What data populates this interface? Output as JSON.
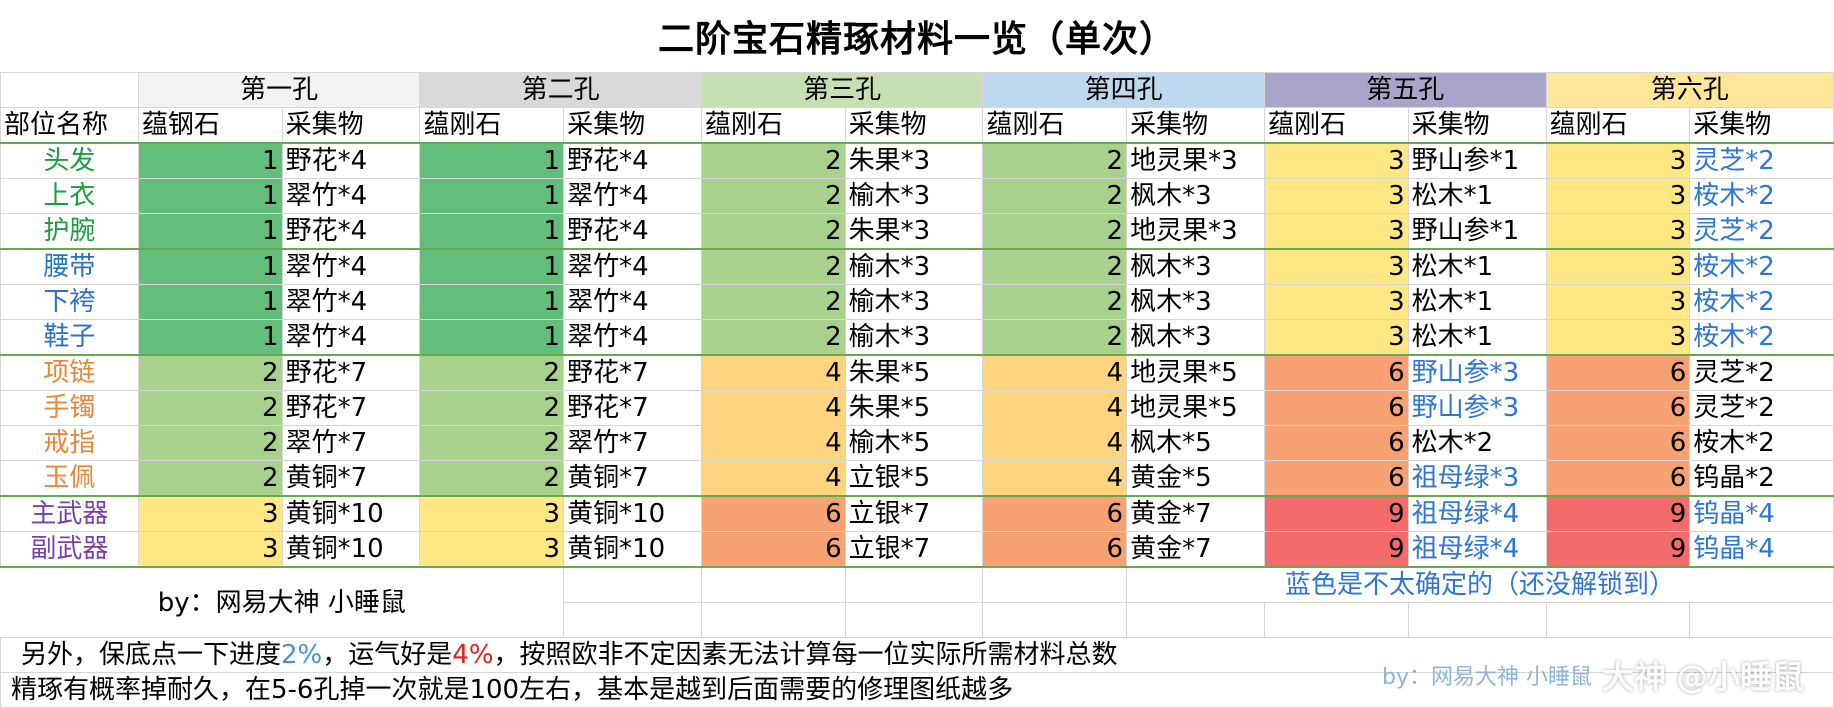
{
  "title": "二阶宝石精琢材料一览（单次）",
  "holes": [
    "第一孔",
    "第二孔",
    "第三孔",
    "第四孔",
    "第五孔",
    "第六孔"
  ],
  "hole_colors": [
    "#f2f2f2",
    "#d9d9d9",
    "#c6e0b4",
    "#bdd7ee",
    "#a9a4c9",
    "#ffe699"
  ],
  "header": {
    "part_name": "部位名称",
    "cols": [
      "蕴钢石",
      "采集物",
      "蕴刚石",
      "采集物",
      "蕴刚石",
      "采集物",
      "蕴刚石",
      "采集物",
      "蕴刚石",
      "采集物",
      "蕴刚石",
      "采集物"
    ]
  },
  "rows": [
    {
      "part": "头发",
      "vals": [
        "1",
        "野花*4",
        "1",
        "野花*4",
        "2",
        "朱果*3",
        "2",
        "地灵果*3",
        "3",
        "野山参*1",
        "3",
        "灵芝*2"
      ]
    },
    {
      "part": "上衣",
      "vals": [
        "1",
        "翠竹*4",
        "1",
        "翠竹*4",
        "2",
        "榆木*3",
        "2",
        "枫木*3",
        "3",
        "松木*1",
        "3",
        "桉木*2"
      ]
    },
    {
      "part": "护腕",
      "vals": [
        "1",
        "野花*4",
        "1",
        "野花*4",
        "2",
        "朱果*3",
        "2",
        "地灵果*3",
        "3",
        "野山参*1",
        "3",
        "灵芝*2"
      ]
    },
    {
      "part": "腰带",
      "vals": [
        "1",
        "翠竹*4",
        "1",
        "翠竹*4",
        "2",
        "榆木*3",
        "2",
        "枫木*3",
        "3",
        "松木*1",
        "3",
        "桉木*2"
      ]
    },
    {
      "part": "下袴",
      "vals": [
        "1",
        "翠竹*4",
        "1",
        "翠竹*4",
        "2",
        "榆木*3",
        "2",
        "枫木*3",
        "3",
        "松木*1",
        "3",
        "桉木*2"
      ]
    },
    {
      "part": "鞋子",
      "vals": [
        "1",
        "翠竹*4",
        "1",
        "翠竹*4",
        "2",
        "榆木*3",
        "2",
        "枫木*3",
        "3",
        "松木*1",
        "3",
        "桉木*2"
      ]
    },
    {
      "part": "项链",
      "vals": [
        "2",
        "野花*7",
        "2",
        "野花*7",
        "4",
        "朱果*5",
        "4",
        "地灵果*5",
        "6",
        "野山参*3",
        "6",
        "灵芝*2"
      ]
    },
    {
      "part": "手镯",
      "vals": [
        "2",
        "野花*7",
        "2",
        "野花*7",
        "4",
        "朱果*5",
        "4",
        "地灵果*5",
        "6",
        "野山参*3",
        "6",
        "灵芝*2"
      ]
    },
    {
      "part": "戒指",
      "vals": [
        "2",
        "翠竹*7",
        "2",
        "翠竹*7",
        "4",
        "榆木*5",
        "4",
        "枫木*5",
        "6",
        "松木*2",
        "6",
        "桉木*2"
      ]
    },
    {
      "part": "玉佩",
      "vals": [
        "2",
        "黄铜*7",
        "2",
        "黄铜*7",
        "4",
        "立银*5",
        "4",
        "黄金*5",
        "6",
        "祖母绿*3",
        "6",
        "钨晶*2"
      ]
    },
    {
      "part": "主武器",
      "vals": [
        "3",
        "黄铜*10",
        "3",
        "黄铜*10",
        "6",
        "立银*7",
        "6",
        "黄金*7",
        "9",
        "祖母绿*4",
        "9",
        "钨晶*4"
      ]
    },
    {
      "part": "副武器",
      "vals": [
        "3",
        "黄铜*10",
        "3",
        "黄铜*10",
        "6",
        "立银*7",
        "6",
        "黄金*7",
        "9",
        "祖母绿*4",
        "9",
        "钨晶*4"
      ]
    }
  ],
  "part_colors": [
    "#1a9e3f",
    "#1a9e3f",
    "#1a9e3f",
    "#2a73c4",
    "#2a73c4",
    "#2a73c4",
    "#e8873a",
    "#e8873a",
    "#e8873a",
    "#e8873a",
    "#7b3fa8",
    "#7b3fa8"
  ],
  "value_colors": {
    "1": "#63be7b",
    "2": "#a9d18e",
    "3": "#ffe784",
    "4": "#ffd47f",
    "6": "#f8a274",
    "9": "#f46b6b"
  },
  "blue_material_cells": [
    [
      0,
      11
    ],
    [
      1,
      11
    ],
    [
      2,
      11
    ],
    [
      3,
      11
    ],
    [
      4,
      11
    ],
    [
      5,
      11
    ],
    [
      6,
      9
    ],
    [
      7,
      9
    ],
    [
      9,
      9
    ],
    [
      10,
      9
    ],
    [
      11,
      9
    ],
    [
      10,
      11
    ],
    [
      11,
      11
    ]
  ],
  "footer": {
    "author": "by：网易大神  小睡鼠",
    "note": "蓝色是不太确定的（还没解锁到）",
    "line1_a": "另外，保底点一下进度",
    "line1_pct1": "2%",
    "line1_b": "，运气好是",
    "line1_pct2": "4%",
    "line1_c": "，按照欧非不定因素无法计算每一位实际所需材料总数",
    "line2": "精琢有概率掉耐久，在5-6孔掉一次就是100左右，基本是越到后面需要的修理图纸越多"
  },
  "watermark": {
    "brand": "大神",
    "handle": "@小睡鼠",
    "by_label": "by：网易大神  小睡鼠"
  }
}
